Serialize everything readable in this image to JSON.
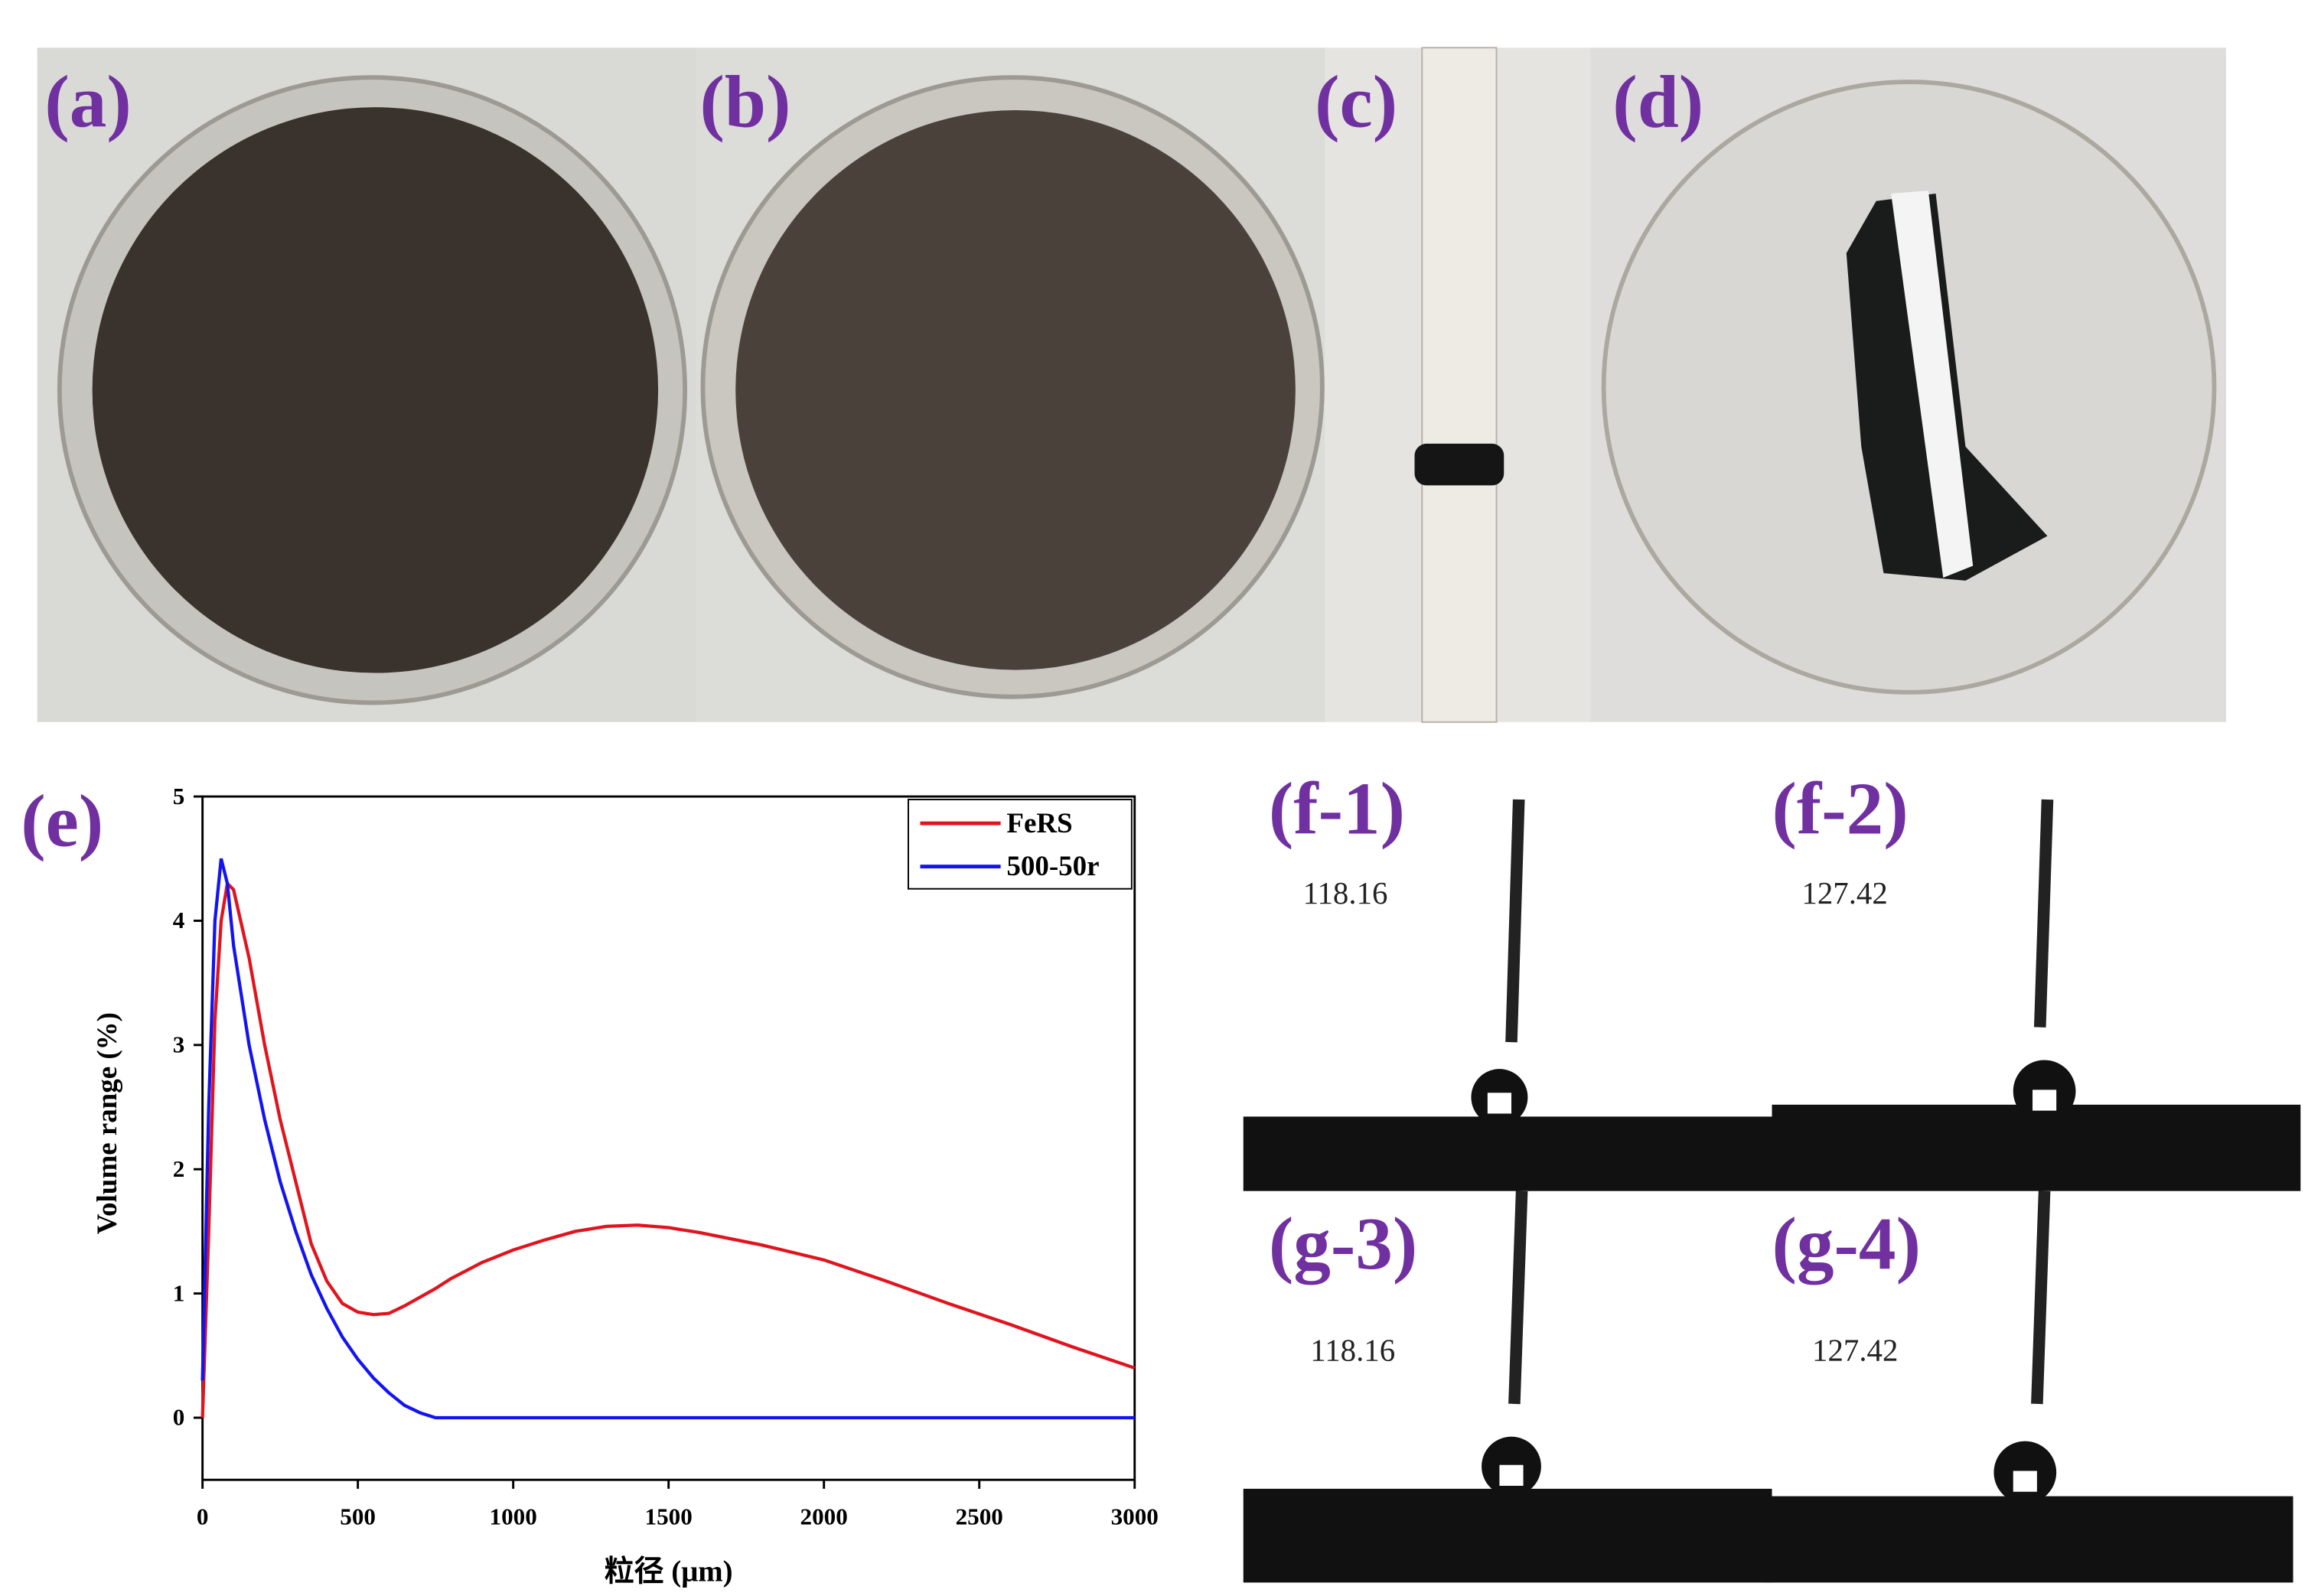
{
  "chart_data": {
    "type": "line",
    "x_label": "粒径 (μm)",
    "y_label": "Volume range (%)",
    "x": [
      0,
      20,
      40,
      60,
      80,
      100,
      150,
      200,
      250,
      300,
      350,
      400,
      450,
      500,
      550,
      600,
      650,
      700,
      750,
      800,
      900,
      1000,
      1100,
      1200,
      1300,
      1400,
      1500,
      1600,
      1800,
      2000,
      2200,
      2400,
      2600,
      2800,
      3000
    ],
    "series": [
      {
        "name": "FeRS",
        "color": "#e0141e",
        "values": [
          0,
          1.5,
          3.2,
          4.0,
          4.3,
          4.25,
          3.7,
          3.0,
          2.4,
          1.9,
          1.4,
          1.1,
          0.92,
          0.85,
          0.83,
          0.84,
          0.9,
          0.97,
          1.04,
          1.12,
          1.25,
          1.35,
          1.43,
          1.5,
          1.54,
          1.55,
          1.53,
          1.49,
          1.39,
          1.27,
          1.1,
          0.92,
          0.75,
          0.57,
          0.4
        ]
      },
      {
        "name": "500-50r",
        "color": "#1414f0",
        "values": [
          0.3,
          2.5,
          4.0,
          4.5,
          4.3,
          3.8,
          3.0,
          2.4,
          1.9,
          1.5,
          1.15,
          0.88,
          0.65,
          0.47,
          0.32,
          0.2,
          0.1,
          0.04,
          0,
          0,
          0,
          0,
          0,
          0,
          0,
          0,
          0,
          0,
          0,
          0,
          0,
          0,
          0,
          0,
          0
        ]
      }
    ],
    "xlim": [
      0,
      3000
    ],
    "xticks": [
      0,
      500,
      1000,
      1500,
      2000,
      2500,
      3000
    ],
    "ylim": [
      -0.5,
      5
    ],
    "yticks": [
      0,
      1,
      2,
      3,
      4,
      5
    ],
    "legend": "upper right",
    "panel_label": "(e)"
  },
  "panels": {
    "photo_labels": [
      "(a)",
      "(b)",
      "(c)",
      "(d)"
    ],
    "contact_angle": [
      {
        "label": "(f-1)",
        "angle": "118.16"
      },
      {
        "label": "(f-2)",
        "angle": "127.42"
      },
      {
        "label": "(g-3)",
        "angle": "118.16"
      },
      {
        "label": "(g-4)",
        "angle": "127.42"
      }
    ]
  }
}
